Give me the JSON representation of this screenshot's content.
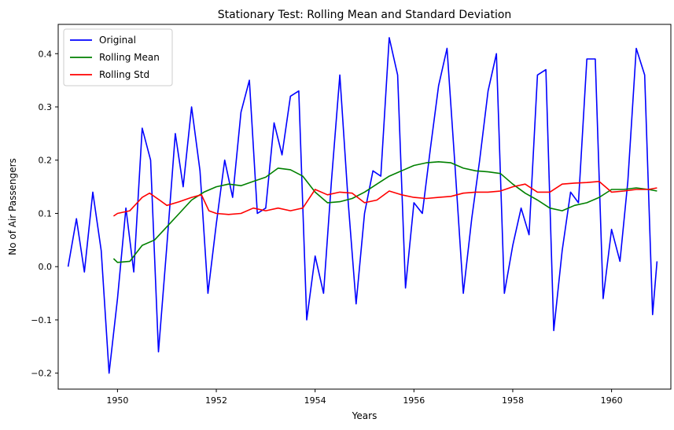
{
  "chart_data": {
    "type": "line",
    "title": "Stationary Test: Rolling Mean and Standard Deviation",
    "xlabel": "Years",
    "ylabel": "No of Air Passengers",
    "xlim": [
      1948.8,
      1961.2
    ],
    "ylim": [
      -0.23,
      0.455
    ],
    "xticks": [
      1950,
      1952,
      1954,
      1956,
      1958,
      1960
    ],
    "yticks": [
      -0.2,
      -0.1,
      0.0,
      0.1,
      0.2,
      0.3,
      0.4
    ],
    "ytick_labels": [
      "−0.2",
      "−0.1",
      "0.0",
      "0.1",
      "0.2",
      "0.3",
      "0.4"
    ],
    "legend_position": "top-left",
    "grid": false,
    "series": [
      {
        "name": "Original",
        "color": "#0000ff",
        "x": [
          1949.0,
          1949.17,
          1949.33,
          1949.5,
          1949.67,
          1949.83,
          1950.0,
          1950.17,
          1950.33,
          1950.5,
          1950.67,
          1950.83,
          1951.0,
          1951.17,
          1951.33,
          1951.5,
          1951.67,
          1951.83,
          1952.0,
          1952.17,
          1952.33,
          1952.5,
          1952.67,
          1952.83,
          1953.0,
          1953.17,
          1953.33,
          1953.5,
          1953.67,
          1953.83,
          1954.0,
          1954.17,
          1954.33,
          1954.5,
          1954.67,
          1954.83,
          1955.0,
          1955.17,
          1955.33,
          1955.5,
          1955.67,
          1955.83,
          1956.0,
          1956.17,
          1956.33,
          1956.5,
          1956.67,
          1956.83,
          1957.0,
          1957.17,
          1957.33,
          1957.5,
          1957.67,
          1957.83,
          1958.0,
          1958.17,
          1958.33,
          1958.5,
          1958.67,
          1958.83,
          1959.0,
          1959.17,
          1959.33,
          1959.5,
          1959.67,
          1959.83,
          1960.0,
          1960.17,
          1960.33,
          1960.5,
          1960.67,
          1960.83,
          1960.92
        ],
        "values": [
          0.0,
          0.09,
          -0.01,
          0.14,
          0.03,
          -0.2,
          -0.06,
          0.11,
          -0.01,
          0.26,
          0.2,
          -0.16,
          0.04,
          0.25,
          0.15,
          0.3,
          0.18,
          -0.05,
          0.08,
          0.2,
          0.13,
          0.29,
          0.35,
          0.1,
          0.11,
          0.27,
          0.21,
          0.32,
          0.33,
          -0.1,
          0.02,
          -0.05,
          0.16,
          0.36,
          0.12,
          -0.07,
          0.1,
          0.18,
          0.17,
          0.43,
          0.36,
          -0.04,
          0.12,
          0.1,
          0.22,
          0.34,
          0.41,
          0.19,
          -0.05,
          0.09,
          0.2,
          0.33,
          0.4,
          -0.05,
          0.04,
          0.11,
          0.06,
          0.36,
          0.37,
          -0.12,
          0.03,
          0.14,
          0.12,
          0.39,
          0.39,
          -0.06,
          0.07,
          0.01,
          0.16,
          0.41,
          0.36,
          -0.09,
          0.01
        ]
      },
      {
        "name": "Rolling Mean",
        "color": "#008000",
        "x": [
          1949.92,
          1950.0,
          1950.25,
          1950.5,
          1950.75,
          1951.0,
          1951.25,
          1951.5,
          1951.75,
          1952.0,
          1952.25,
          1952.5,
          1952.75,
          1953.0,
          1953.25,
          1953.5,
          1953.75,
          1954.0,
          1954.25,
          1954.5,
          1954.75,
          1955.0,
          1955.25,
          1955.5,
          1955.75,
          1956.0,
          1956.25,
          1956.5,
          1956.75,
          1957.0,
          1957.25,
          1957.5,
          1957.75,
          1958.0,
          1958.25,
          1958.5,
          1958.75,
          1959.0,
          1959.25,
          1959.5,
          1959.75,
          1960.0,
          1960.25,
          1960.5,
          1960.75,
          1960.92
        ],
        "values": [
          0.015,
          0.008,
          0.01,
          0.04,
          0.05,
          0.075,
          0.1,
          0.125,
          0.14,
          0.15,
          0.155,
          0.152,
          0.16,
          0.168,
          0.185,
          0.182,
          0.17,
          0.14,
          0.12,
          0.122,
          0.128,
          0.14,
          0.155,
          0.17,
          0.18,
          0.19,
          0.195,
          0.197,
          0.195,
          0.185,
          0.18,
          0.178,
          0.175,
          0.155,
          0.138,
          0.125,
          0.11,
          0.105,
          0.115,
          0.12,
          0.13,
          0.145,
          0.145,
          0.148,
          0.145,
          0.142
        ]
      },
      {
        "name": "Rolling Std",
        "color": "#ff0000",
        "x": [
          1949.92,
          1950.0,
          1950.25,
          1950.5,
          1950.65,
          1950.85,
          1951.0,
          1951.25,
          1951.5,
          1951.7,
          1951.85,
          1952.0,
          1952.25,
          1952.5,
          1952.75,
          1953.0,
          1953.25,
          1953.5,
          1953.75,
          1954.0,
          1954.25,
          1954.5,
          1954.75,
          1955.0,
          1955.25,
          1955.5,
          1955.75,
          1956.0,
          1956.25,
          1956.5,
          1956.75,
          1957.0,
          1957.25,
          1957.5,
          1957.75,
          1958.0,
          1958.25,
          1958.5,
          1958.75,
          1959.0,
          1959.25,
          1959.5,
          1959.75,
          1960.0,
          1960.25,
          1960.5,
          1960.75,
          1960.92
        ],
        "values": [
          0.095,
          0.1,
          0.105,
          0.13,
          0.138,
          0.125,
          0.115,
          0.122,
          0.13,
          0.135,
          0.105,
          0.1,
          0.098,
          0.1,
          0.11,
          0.105,
          0.11,
          0.105,
          0.11,
          0.145,
          0.135,
          0.14,
          0.138,
          0.12,
          0.125,
          0.142,
          0.135,
          0.13,
          0.128,
          0.13,
          0.132,
          0.138,
          0.14,
          0.14,
          0.142,
          0.15,
          0.155,
          0.14,
          0.14,
          0.155,
          0.157,
          0.158,
          0.16,
          0.14,
          0.142,
          0.145,
          0.145,
          0.148
        ]
      }
    ]
  }
}
